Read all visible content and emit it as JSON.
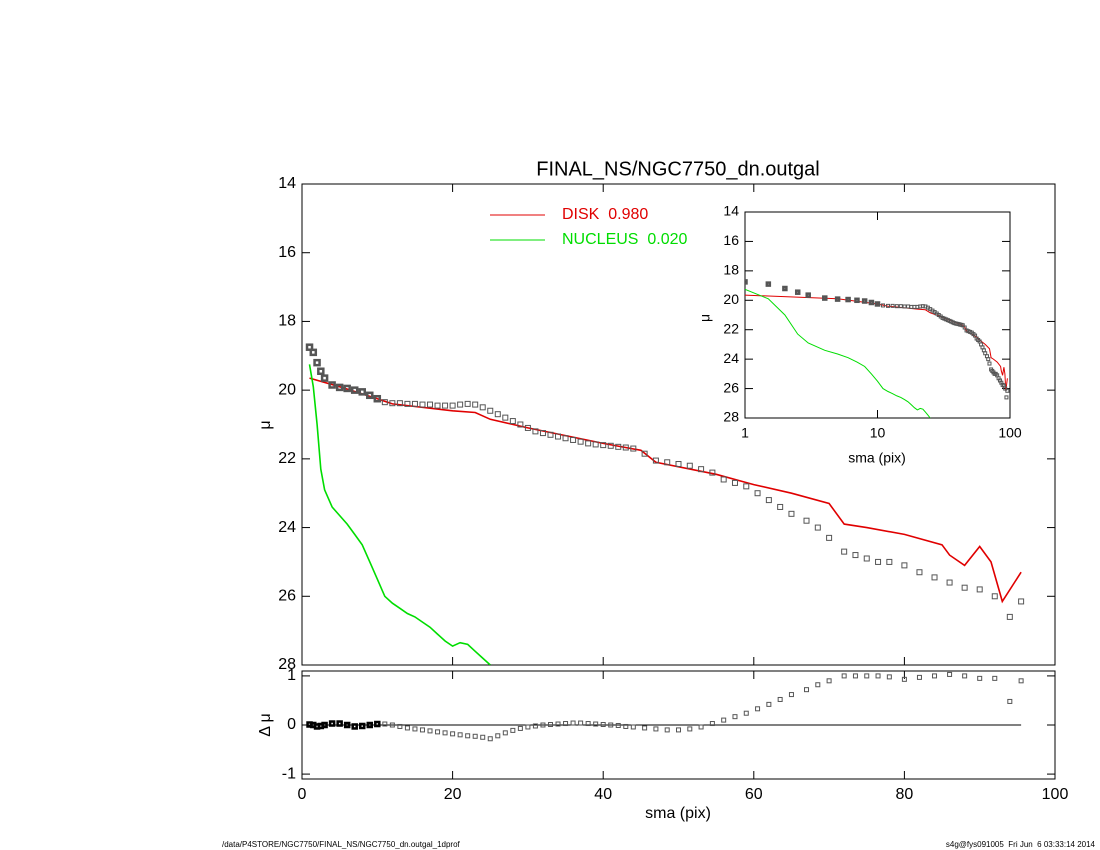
{
  "chart_data": [
    {
      "type": "profile",
      "title": "FINAL_NS/NGC7750_dn.outgal",
      "ylabel": "μ",
      "xlim": [
        0,
        100
      ],
      "ylim": [
        28,
        14
      ],
      "xticks": [
        0,
        20,
        40,
        60,
        80,
        100
      ],
      "yticks": [
        14,
        16,
        18,
        20,
        22,
        24,
        26,
        28
      ],
      "points": {
        "color": "#555555",
        "x": [
          1,
          1.5,
          2,
          2.5,
          3,
          4,
          5,
          6,
          7,
          8,
          9,
          10,
          11,
          12,
          13,
          14,
          15,
          16,
          17,
          18,
          19,
          20,
          21,
          22,
          23,
          24,
          25,
          26,
          27,
          28,
          29,
          30,
          31,
          32,
          33,
          34,
          35,
          36,
          37,
          38,
          39,
          40,
          41,
          42,
          43,
          44,
          45.5,
          47,
          48.5,
          50,
          51.5,
          53,
          54.5,
          56,
          57.5,
          59,
          60.5,
          62,
          63.5,
          65,
          67,
          68.5,
          70,
          72,
          73.5,
          75,
          76.5,
          78,
          80,
          82,
          84,
          86,
          88,
          90,
          92,
          94,
          95.5
        ],
        "values": [
          18.75,
          18.9,
          19.2,
          19.45,
          19.65,
          19.85,
          19.92,
          19.95,
          20.0,
          20.05,
          20.15,
          20.25,
          20.35,
          20.38,
          20.38,
          20.4,
          20.4,
          20.42,
          20.42,
          20.45,
          20.45,
          20.45,
          20.42,
          20.4,
          20.42,
          20.5,
          20.6,
          20.7,
          20.8,
          20.9,
          21.0,
          21.1,
          21.2,
          21.25,
          21.3,
          21.35,
          21.4,
          21.45,
          21.5,
          21.55,
          21.58,
          21.6,
          21.62,
          21.65,
          21.67,
          21.7,
          21.85,
          22.05,
          22.1,
          22.15,
          22.2,
          22.3,
          22.4,
          22.6,
          22.7,
          22.8,
          23.0,
          23.2,
          23.4,
          23.6,
          23.8,
          24.0,
          24.3,
          24.7,
          24.8,
          24.9,
          25.0,
          25.0,
          25.1,
          25.3,
          25.45,
          25.6,
          25.75,
          25.8,
          26.0,
          26.6,
          26.15
        ]
      },
      "series": [
        {
          "name": "DISK  0.980",
          "color": "#e00000",
          "x": [
            1,
            5,
            10,
            12,
            20,
            23,
            25,
            30,
            40,
            45,
            47,
            55,
            60,
            65,
            70,
            72,
            75,
            80,
            85,
            86,
            88,
            90,
            91.5,
            93,
            95.5
          ],
          "values": [
            19.65,
            19.9,
            20.25,
            20.4,
            20.6,
            20.65,
            20.85,
            21.1,
            21.55,
            21.75,
            22.1,
            22.45,
            22.75,
            23.0,
            23.3,
            23.9,
            24.0,
            24.2,
            24.5,
            24.8,
            25.1,
            24.55,
            25.0,
            26.15,
            25.3
          ]
        },
        {
          "name": "NUCLEUS  0.020",
          "color": "#00dd00",
          "x": [
            1,
            1.5,
            2,
            2.5,
            3,
            4,
            5,
            6,
            7,
            8,
            9,
            10,
            11,
            12,
            13,
            14,
            15,
            16,
            17,
            18,
            19,
            20,
            21,
            22,
            23,
            24,
            25
          ],
          "values": [
            19.25,
            19.9,
            21.0,
            22.3,
            22.9,
            23.4,
            23.65,
            23.9,
            24.2,
            24.5,
            25.0,
            25.5,
            26.0,
            26.2,
            26.35,
            26.5,
            26.6,
            26.75,
            26.9,
            27.1,
            27.3,
            27.45,
            27.35,
            27.4,
            27.6,
            27.8,
            28.0
          ]
        }
      ]
    },
    {
      "type": "residual",
      "ylabel": "Δ μ",
      "xlabel": "sma (pix)",
      "xlim": [
        0,
        100
      ],
      "ylim": [
        -1.1,
        1.1
      ],
      "xticks": [
        0,
        20,
        40,
        60,
        80,
        100
      ],
      "yticks": [
        -1,
        0,
        1
      ],
      "reference_line": 0,
      "values": [
        0.01,
        0.0,
        -0.03,
        -0.02,
        0.0,
        0.03,
        0.03,
        0.0,
        -0.03,
        -0.02,
        0.0,
        0.02,
        0.02,
        0.0,
        -0.03,
        -0.06,
        -0.08,
        -0.1,
        -0.12,
        -0.14,
        -0.16,
        -0.18,
        -0.2,
        -0.22,
        -0.23,
        -0.25,
        -0.28,
        -0.22,
        -0.16,
        -0.11,
        -0.07,
        -0.04,
        -0.02,
        0.0,
        0.01,
        0.02,
        0.03,
        0.04,
        0.04,
        0.03,
        0.02,
        0.01,
        0.0,
        -0.01,
        -0.03,
        -0.04,
        -0.06,
        -0.08,
        -0.1,
        -0.1,
        -0.08,
        -0.04,
        0.03,
        0.1,
        0.17,
        0.24,
        0.33,
        0.42,
        0.52,
        0.62,
        0.72,
        0.82,
        0.9,
        1.0,
        1.0,
        1.0,
        1.0,
        0.98,
        0.93,
        0.97,
        1.0,
        1.03,
        1.0,
        0.95,
        0.95,
        0.48,
        0.9
      ]
    },
    {
      "type": "inset",
      "xlabel": "sma (pix)",
      "ylabel": "μ",
      "xlog": true,
      "xlim": [
        1,
        100
      ],
      "ylim": [
        28,
        14
      ],
      "xticks": [
        1,
        10,
        100
      ],
      "yticks": [
        14,
        16,
        18,
        20,
        22,
        24,
        26,
        28
      ]
    }
  ],
  "footer": {
    "left": "/data/P4STORE/NGC7750/FINAL_NS/NGC7750_dn.outgal_1dprof",
    "right": "s4g@fys091005  Fri Jun  6 03:33:14 2014"
  }
}
